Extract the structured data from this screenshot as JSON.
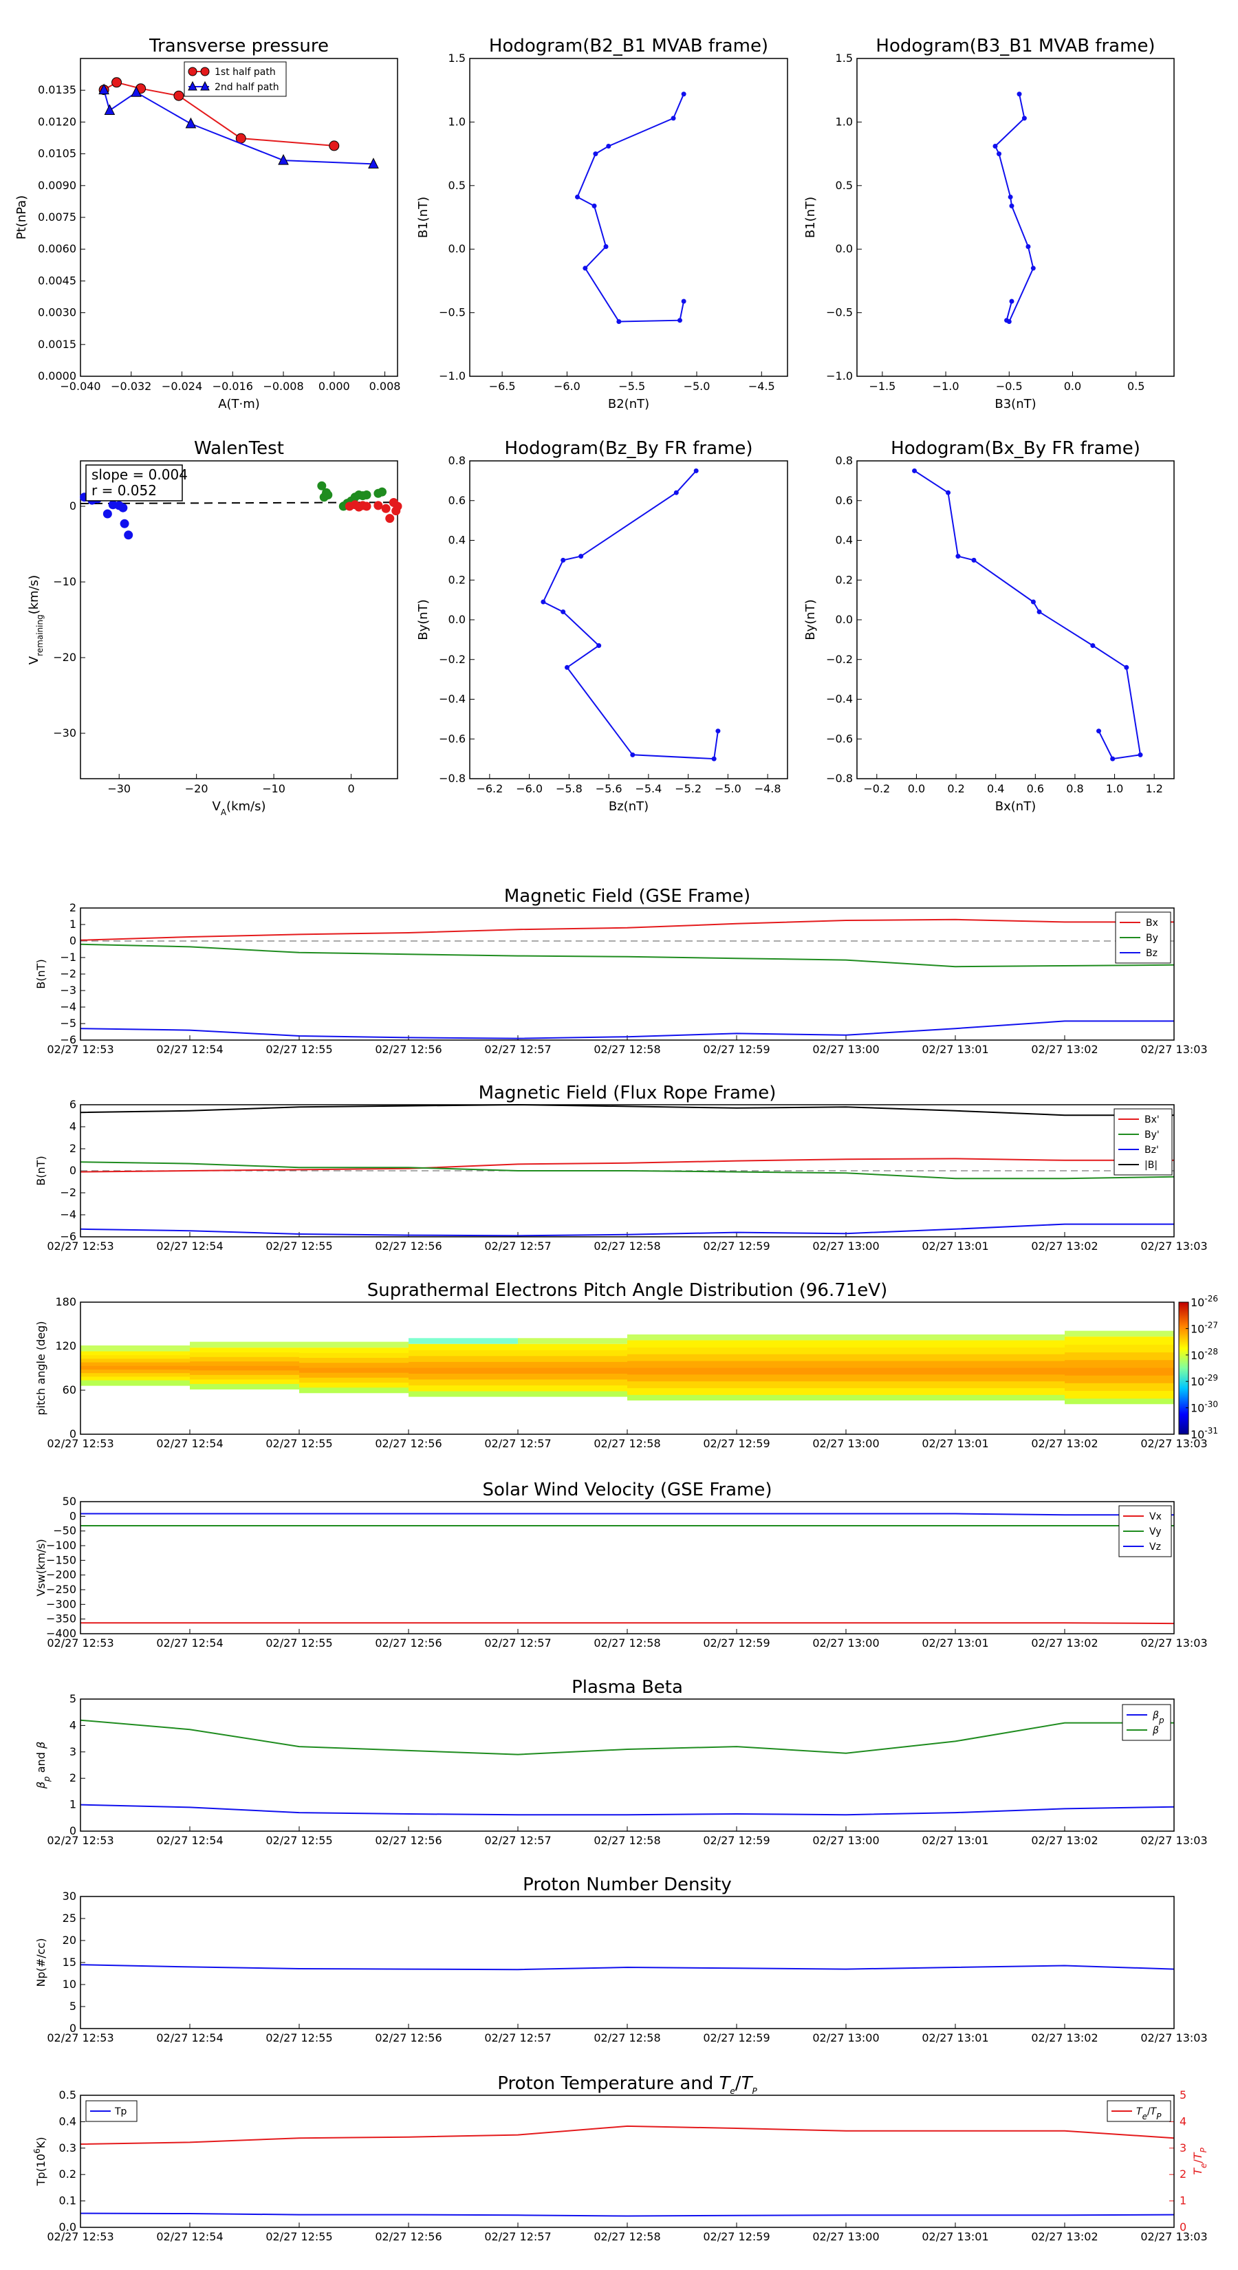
{
  "colors": {
    "red": "#e41a1c",
    "green": "#1f8c1f",
    "blue": "#1010ee",
    "black": "#000000"
  },
  "chart_data": [
    {
      "id": "transverse",
      "type": "line",
      "title": "Transverse pressure",
      "xlabel": "A(T·m)",
      "ylabel": "Pt(nPa)",
      "xlim": [
        -0.04,
        0.01
      ],
      "ylim": [
        0.0,
        0.015
      ],
      "xticks": [
        "−0.040",
        "−0.032",
        "−0.024",
        "−0.016",
        "−0.008",
        "0.000",
        "0.008"
      ],
      "yticks": [
        "0.0000",
        "0.0015",
        "0.0030",
        "0.0045",
        "0.0060",
        "0.0075",
        "0.0090",
        "0.0105",
        "0.0120",
        "0.0135"
      ],
      "series": [
        {
          "name": "1st half path",
          "color": "#e41a1c",
          "marker": "circle",
          "x": [
            0.0,
            -0.0147,
            -0.0245,
            -0.0305,
            -0.0343,
            -0.0363
          ],
          "y": [
            0.01088,
            0.01123,
            0.01324,
            0.01358,
            0.01387,
            0.01352
          ]
        },
        {
          "name": "2nd half path",
          "color": "#1010ee",
          "marker": "triangle",
          "x": [
            -0.0363,
            -0.0354,
            -0.0312,
            -0.0226,
            -0.008,
            0.0062
          ],
          "y": [
            0.01352,
            0.01255,
            0.0134,
            0.01192,
            0.01019,
            0.01002
          ]
        }
      ]
    },
    {
      "id": "hodo1",
      "type": "line",
      "title": "Hodogram(B2_B1 MVAB frame)",
      "xlabel": "B2(nT)",
      "ylabel": "B1(nT)",
      "xlim": [
        -6.75,
        -4.3
      ],
      "ylim": [
        -1.0,
        1.5
      ],
      "xticks": [
        "−6.5",
        "−6.0",
        "−5.5",
        "−5.0",
        "−4.5"
      ],
      "yticks": [
        "−1.0",
        "−0.5",
        "0.0",
        "0.5",
        "1.0",
        "1.5"
      ],
      "series": [
        {
          "color": "#1010ee",
          "x": [
            -5.1,
            -5.18,
            -5.68,
            -5.78,
            -5.92,
            -5.79,
            -5.7,
            -5.86,
            -5.6,
            -5.13,
            -5.1
          ],
          "y": [
            1.22,
            1.03,
            0.81,
            0.75,
            0.41,
            0.34,
            0.02,
            -0.15,
            -0.57,
            -0.56,
            -0.41
          ]
        }
      ]
    },
    {
      "id": "hodo2",
      "type": "line",
      "title": "Hodogram(B3_B1 MVAB frame)",
      "xlabel": "B3(nT)",
      "ylabel": "B1(nT)",
      "xlim": [
        -1.7,
        0.8
      ],
      "ylim": [
        -1.0,
        1.5
      ],
      "xticks": [
        "−1.5",
        "−1.0",
        "−0.5",
        "0.0",
        "0.5"
      ],
      "yticks": [
        "−1.0",
        "−0.5",
        "0.0",
        "0.5",
        "1.0",
        "1.5"
      ],
      "series": [
        {
          "color": "#1010ee",
          "x": [
            -0.42,
            -0.38,
            -0.61,
            -0.58,
            -0.49,
            -0.48,
            -0.35,
            -0.31,
            -0.5,
            -0.52,
            -0.48
          ],
          "y": [
            1.22,
            1.03,
            0.81,
            0.75,
            0.41,
            0.34,
            0.02,
            -0.15,
            -0.57,
            -0.56,
            -0.41
          ]
        }
      ]
    },
    {
      "id": "walen",
      "type": "scatter",
      "title": "WalenTest",
      "xlabel": "V_A(km/s)",
      "ylabel": "V_remaining(km/s)",
      "xlim": [
        -35,
        6
      ],
      "ylim": [
        -36,
        6
      ],
      "xticks": [
        "−30",
        "−20",
        "−10",
        "0"
      ],
      "yticks": [
        "−30",
        "−20",
        "−10",
        "0"
      ],
      "annotation": [
        "slope = 0.004",
        "r = 0.052"
      ],
      "fit": {
        "slope": 0.004,
        "intercept": 0.5
      },
      "series": [
        {
          "color": "#1010ee",
          "x": [
            -34.5,
            -33.5,
            -32.8,
            -31.5,
            -30.8,
            -30.0,
            -29.5,
            -29.3,
            -28.8
          ],
          "y": [
            1.2,
            0.8,
            1.0,
            -1.0,
            0.2,
            0.1,
            -0.2,
            -2.3,
            -3.8
          ]
        },
        {
          "color": "#1f8c1f",
          "x": [
            -3.8,
            -3.5,
            -3.2,
            -3.0,
            -1.0,
            -0.5,
            0.0,
            0.3,
            0.5,
            1.0,
            1.5,
            2.0,
            3.5,
            4.0
          ],
          "y": [
            2.7,
            1.2,
            1.8,
            1.5,
            0.0,
            0.4,
            0.7,
            0.6,
            1.2,
            1.5,
            1.4,
            1.5,
            1.7,
            1.9
          ]
        },
        {
          "color": "#e41a1c",
          "x": [
            -0.2,
            0.5,
            1.0,
            1.5,
            2.0,
            3.5,
            4.5,
            5.0,
            5.5,
            5.8,
            6.0
          ],
          "y": [
            0.0,
            0.2,
            -0.1,
            0.1,
            0.0,
            0.1,
            -0.3,
            -1.6,
            0.5,
            -0.6,
            0.0
          ]
        }
      ]
    },
    {
      "id": "hodo3",
      "type": "line",
      "title": "Hodogram(Bz_By FR frame)",
      "xlabel": "Bz(nT)",
      "ylabel": "By(nT)",
      "xlim": [
        -6.3,
        -4.7
      ],
      "ylim": [
        -0.8,
        0.8
      ],
      "xticks": [
        "−6.2",
        "−6.0",
        "−5.8",
        "−5.6",
        "−5.4",
        "−5.2",
        "−5.0",
        "−4.8"
      ],
      "yticks": [
        "−0.8",
        "−0.6",
        "−0.4",
        "−0.2",
        "0.0",
        "0.2",
        "0.4",
        "0.6",
        "0.8"
      ],
      "series": [
        {
          "color": "#1010ee",
          "x": [
            -5.16,
            -5.26,
            -5.74,
            -5.83,
            -5.93,
            -5.83,
            -5.65,
            -5.81,
            -5.48,
            -5.07,
            -5.05
          ],
          "y": [
            0.75,
            0.64,
            0.32,
            0.3,
            0.09,
            0.04,
            -0.13,
            -0.24,
            -0.68,
            -0.7,
            -0.56
          ]
        }
      ]
    },
    {
      "id": "hodo4",
      "type": "line",
      "title": "Hodogram(Bx_By FR frame)",
      "xlabel": "Bx(nT)",
      "ylabel": "By(nT)",
      "xlim": [
        -0.3,
        1.3
      ],
      "ylim": [
        -0.8,
        0.8
      ],
      "xticks": [
        "−0.2",
        "0.0",
        "0.2",
        "0.4",
        "0.6",
        "0.8",
        "1.0",
        "1.2"
      ],
      "yticks": [
        "−0.8",
        "−0.6",
        "−0.4",
        "−0.2",
        "0.0",
        "0.2",
        "0.4",
        "0.6",
        "0.8"
      ],
      "series": [
        {
          "color": "#1010ee",
          "x": [
            -0.01,
            0.16,
            0.21,
            0.29,
            0.59,
            0.62,
            0.89,
            1.06,
            1.13,
            0.99,
            0.92
          ],
          "y": [
            0.75,
            0.64,
            0.32,
            0.3,
            0.09,
            0.04,
            -0.13,
            -0.24,
            -0.68,
            -0.7,
            -0.56
          ]
        }
      ]
    },
    {
      "id": "magfield_gse",
      "type": "line",
      "title": "Magnetic Field (GSE Frame)",
      "ylabel": "B(nT)",
      "ylim": [
        -6,
        2
      ],
      "yticks": [
        "−6",
        "−5",
        "−4",
        "−3",
        "−2",
        "−1",
        "0",
        "1",
        "2"
      ],
      "zero_line": true,
      "legend": "top-right",
      "series": [
        {
          "name": "Bx",
          "color": "#e41a1c",
          "y": [
            0.05,
            0.25,
            0.4,
            0.5,
            0.7,
            0.8,
            1.05,
            1.25,
            1.3,
            1.15,
            1.15
          ]
        },
        {
          "name": "By",
          "color": "#1f8c1f",
          "y": [
            -0.2,
            -0.35,
            -0.7,
            -0.8,
            -0.9,
            -0.95,
            -1.05,
            -1.15,
            -1.55,
            -1.5,
            -1.45
          ]
        },
        {
          "name": "Bz",
          "color": "#1010ee",
          "y": [
            -5.3,
            -5.4,
            -5.75,
            -5.85,
            -5.9,
            -5.8,
            -5.6,
            -5.7,
            -5.3,
            -4.85,
            -4.85
          ]
        }
      ]
    },
    {
      "id": "magfield_fr",
      "type": "line",
      "title": "Magnetic Field (Flux Rope Frame)",
      "ylabel": "B(nT)",
      "ylim": [
        -6,
        6
      ],
      "yticks": [
        "−6",
        "−4",
        "−2",
        "0",
        "2",
        "4",
        "6"
      ],
      "zero_line": true,
      "legend": "top-right",
      "series": [
        {
          "name": "Bx'",
          "color": "#e41a1c",
          "y": [
            -0.1,
            0.0,
            0.1,
            0.2,
            0.6,
            0.7,
            0.9,
            1.05,
            1.1,
            0.95,
            0.95
          ]
        },
        {
          "name": "By'",
          "color": "#1f8c1f",
          "y": [
            0.8,
            0.65,
            0.3,
            0.3,
            0.0,
            0.0,
            -0.1,
            -0.2,
            -0.7,
            -0.7,
            -0.55
          ]
        },
        {
          "name": "Bz'",
          "color": "#1010ee",
          "y": [
            -5.3,
            -5.45,
            -5.75,
            -5.85,
            -5.9,
            -5.8,
            -5.6,
            -5.7,
            -5.3,
            -4.85,
            -4.85
          ]
        },
        {
          "name": "|B|",
          "color": "#000000",
          "y": [
            5.3,
            5.45,
            5.8,
            5.9,
            6.0,
            5.85,
            5.7,
            5.8,
            5.45,
            5.05,
            5.05
          ]
        }
      ]
    },
    {
      "id": "pad",
      "type": "heatmap",
      "title": "Suprathermal Electrons Pitch Angle Distribution (96.71eV)",
      "ylabel": "pitch angle (deg)",
      "ylim": [
        0,
        180
      ],
      "yticks": [
        "0",
        "60",
        "120",
        "180"
      ],
      "colorbar_ticks": [
        "-31",
        "-30",
        "-29",
        "-28",
        "-27",
        "-26"
      ],
      "colorbar_base": "10",
      "bins_low": [
        66,
        61,
        56,
        51,
        51,
        46,
        46,
        46,
        46,
        41,
        36
      ],
      "bins_high": [
        121,
        126,
        126,
        131,
        131,
        136,
        136,
        136,
        136,
        141,
        146
      ]
    },
    {
      "id": "vsw",
      "type": "line",
      "title": "Solar Wind Velocity (GSE Frame)",
      "ylabel": "Vsw(km/s)",
      "ylim": [
        -400,
        50
      ],
      "yticks": [
        "−400",
        "−350",
        "−300",
        "−250",
        "−200",
        "−150",
        "−100",
        "−50",
        "0",
        "50"
      ],
      "legend": "top-right",
      "series": [
        {
          "name": "Vx",
          "color": "#e41a1c",
          "y": [
            -363,
            -363,
            -363,
            -363,
            -363,
            -363,
            -363,
            -363,
            -363,
            -363,
            -365
          ]
        },
        {
          "name": "Vy",
          "color": "#1f8c1f",
          "y": [
            -32,
            -32,
            -32,
            -32,
            -32,
            -32,
            -32,
            -32,
            -32,
            -32,
            -32
          ]
        },
        {
          "name": "Vz",
          "color": "#1010ee",
          "y": [
            9,
            9,
            9,
            9,
            9,
            9,
            9,
            9,
            9,
            5,
            5
          ]
        }
      ]
    },
    {
      "id": "beta",
      "type": "line",
      "title": "Plasma Beta",
      "ylabel": "β_p and β",
      "ylim": [
        0,
        5
      ],
      "yticks": [
        "0",
        "1",
        "2",
        "3",
        "4",
        "5"
      ],
      "legend": "top-right",
      "series": [
        {
          "name": "β_p",
          "color": "#1010ee",
          "y": [
            1.0,
            0.9,
            0.7,
            0.65,
            0.62,
            0.62,
            0.65,
            0.62,
            0.7,
            0.85,
            0.92
          ]
        },
        {
          "name": "β",
          "color": "#1f8c1f",
          "y": [
            4.2,
            3.85,
            3.2,
            3.05,
            2.9,
            3.1,
            3.2,
            2.95,
            3.4,
            4.1,
            4.1
          ]
        }
      ]
    },
    {
      "id": "density",
      "type": "line",
      "title": "Proton Number Density",
      "ylabel": "Np(#/cc)",
      "ylim": [
        0,
        30
      ],
      "yticks": [
        "0",
        "5",
        "10",
        "15",
        "20",
        "25",
        "30"
      ],
      "series": [
        {
          "color": "#1010ee",
          "y": [
            14.5,
            14.0,
            13.6,
            13.5,
            13.4,
            13.9,
            13.7,
            13.5,
            13.9,
            14.3,
            13.5
          ]
        }
      ]
    },
    {
      "id": "temperature",
      "type": "line",
      "title": "Proton Temperature and T_e/T_p",
      "ylabel": "Tp(10^6K)",
      "ylabel2": "T_e/T_p",
      "ylim": [
        0,
        0.5
      ],
      "ylim2": [
        0,
        5
      ],
      "yticks": [
        "0.0",
        "0.1",
        "0.2",
        "0.3",
        "0.4",
        "0.5"
      ],
      "yticks2": [
        "0",
        "1",
        "2",
        "3",
        "4",
        "5"
      ],
      "series": [
        {
          "name": "Tp",
          "color": "#1010ee",
          "axis": "left",
          "legend": "top-left",
          "y": [
            0.053,
            0.052,
            0.048,
            0.048,
            0.046,
            0.043,
            0.045,
            0.046,
            0.046,
            0.046,
            0.048
          ]
        },
        {
          "name": "T_e/T_p",
          "color": "#e41a1c",
          "axis": "right",
          "legend": "top-right",
          "y": [
            3.15,
            3.22,
            3.38,
            3.42,
            3.5,
            3.83,
            3.75,
            3.65,
            3.65,
            3.65,
            3.38
          ]
        }
      ]
    }
  ],
  "time_axis": {
    "labels": [
      "02/27 12:53",
      "02/27 12:54",
      "02/27 12:55",
      "02/27 12:56",
      "02/27 12:57",
      "02/27 12:58",
      "02/27 12:59",
      "02/27 13:00",
      "02/27 13:01",
      "02/27 13:02",
      "02/27 13:03"
    ]
  }
}
